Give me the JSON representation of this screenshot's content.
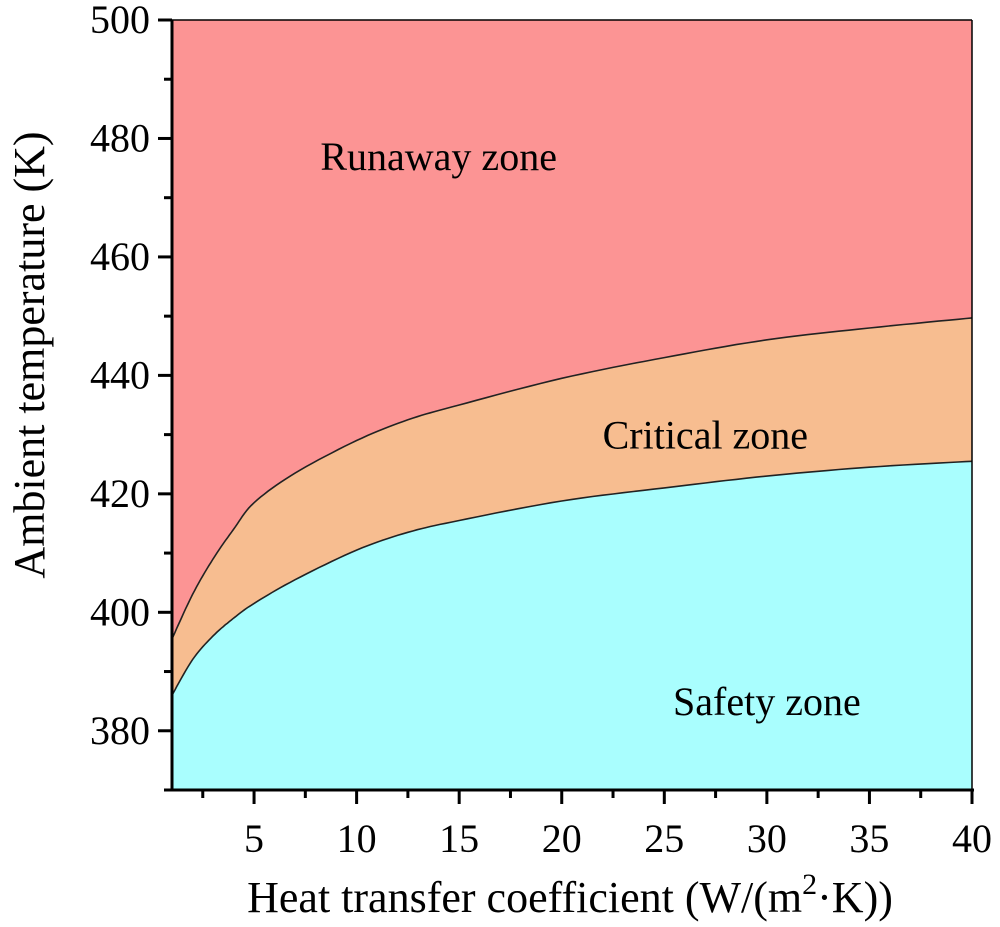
{
  "chart_data": {
    "type": "area",
    "title": "",
    "xlabel": "Heat transfer coefficient (W/(m²·K))",
    "ylabel": "Ambient temperature (K)",
    "xlim": [
      1,
      40
    ],
    "ylim": [
      370,
      500
    ],
    "x_ticks": [
      5,
      10,
      15,
      20,
      25,
      30,
      35,
      40
    ],
    "y_ticks": [
      380,
      400,
      420,
      440,
      460,
      480,
      500
    ],
    "grid": false,
    "legend": "none",
    "x": [
      1,
      2,
      3,
      4,
      5,
      7,
      10,
      12.5,
      15,
      20,
      25,
      30,
      35,
      40
    ],
    "series": [
      {
        "name": "Runaway/Critical boundary",
        "values": [
          395.5,
          403,
          409,
          414,
          418.5,
          423.5,
          429,
          432.5,
          435,
          439.5,
          443,
          446,
          448,
          449.7
        ]
      },
      {
        "name": "Critical/Safety boundary",
        "values": [
          386,
          392,
          396,
          399,
          401.5,
          405.5,
          410.5,
          413.5,
          415.5,
          418.8,
          421,
          423,
          424.5,
          425.5
        ]
      }
    ],
    "zones": [
      {
        "name": "Runaway zone",
        "color": "#FC9494",
        "label_x": 14,
        "label_y": 477
      },
      {
        "name": "Critical zone",
        "color": "#F7BD90",
        "label_x": 27,
        "label_y": 430
      },
      {
        "name": "Safety zone",
        "color": "#A9FEFE",
        "label_x": 30,
        "label_y": 385
      }
    ]
  }
}
